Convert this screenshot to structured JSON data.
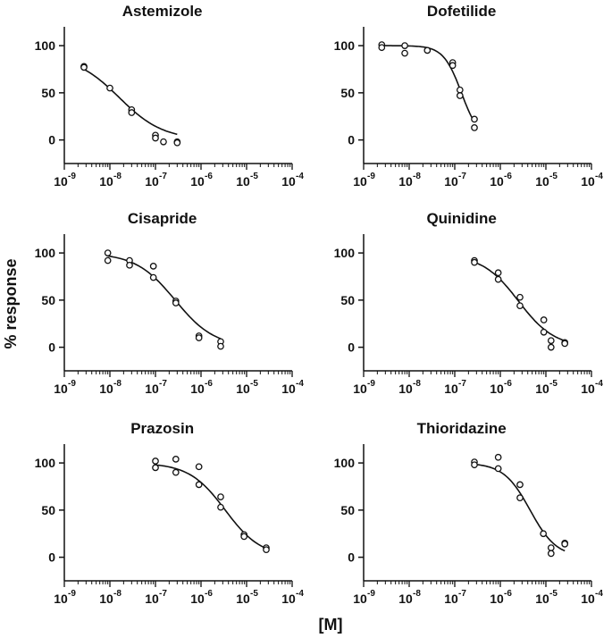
{
  "figure": {
    "ylabel": "% response",
    "xlabel": "[M]"
  },
  "chart_data": [
    {
      "type": "scatter",
      "title": "Astemizole",
      "xscale": "log",
      "xlim": [
        1e-09,
        0.0001
      ],
      "ylim": [
        -25,
        120
      ],
      "yticks": [
        0,
        50,
        100
      ],
      "xticks": [
        "10^-9",
        "10^-8",
        "10^-7",
        "10^-6",
        "10^-5",
        "10^-4"
      ],
      "points": [
        [
          2.7e-09,
          78
        ],
        [
          2.7e-09,
          77
        ],
        [
          1e-08,
          55
        ],
        [
          3e-08,
          32
        ],
        [
          3e-08,
          29
        ],
        [
          1e-07,
          5
        ],
        [
          1e-07,
          2
        ],
        [
          1.5e-07,
          -2
        ],
        [
          3e-07,
          -2
        ],
        [
          3e-07,
          -3
        ]
      ],
      "fit": {
        "top": 90,
        "bottom": 0,
        "ic50": 1.6e-08,
        "hill": 0.9,
        "x_range": [
          2.7e-09,
          3e-07
        ]
      }
    },
    {
      "type": "scatter",
      "title": "Dofetilide",
      "xscale": "log",
      "xlim": [
        1e-09,
        0.0001
      ],
      "ylim": [
        -25,
        120
      ],
      "yticks": [
        0,
        50,
        100
      ],
      "xticks": [
        "10^-9",
        "10^-8",
        "10^-7",
        "10^-6",
        "10^-5",
        "10^-4"
      ],
      "points": [
        [
          2.5e-09,
          101
        ],
        [
          2.5e-09,
          98
        ],
        [
          8e-09,
          100
        ],
        [
          8e-09,
          92
        ],
        [
          2.5e-08,
          95
        ],
        [
          9e-08,
          82
        ],
        [
          9e-08,
          79
        ],
        [
          1.3e-07,
          53
        ],
        [
          1.3e-07,
          47
        ],
        [
          2.7e-07,
          22
        ],
        [
          2.7e-07,
          13
        ]
      ],
      "fit": {
        "top": 100,
        "bottom": 0,
        "ic50": 1.4e-07,
        "hill": 2.2,
        "x_range": [
          2.5e-09,
          2.7e-07
        ]
      }
    },
    {
      "type": "scatter",
      "title": "Cisapride",
      "xscale": "log",
      "xlim": [
        1e-09,
        0.0001
      ],
      "ylim": [
        -25,
        120
      ],
      "yticks": [
        0,
        50,
        100
      ],
      "xticks": [
        "10^-9",
        "10^-8",
        "10^-7",
        "10^-6",
        "10^-5",
        "10^-4"
      ],
      "points": [
        [
          9e-09,
          100
        ],
        [
          9e-09,
          92
        ],
        [
          2.7e-08,
          92
        ],
        [
          2.7e-08,
          87
        ],
        [
          9e-08,
          86
        ],
        [
          9e-08,
          74
        ],
        [
          2.8e-07,
          49
        ],
        [
          2.8e-07,
          47
        ],
        [
          9e-07,
          12
        ],
        [
          9e-07,
          10
        ],
        [
          2.7e-06,
          6
        ],
        [
          2.7e-06,
          1
        ]
      ],
      "fit": {
        "top": 100,
        "bottom": 0,
        "ic50": 2.7e-07,
        "hill": 1.0,
        "x_range": [
          9e-09,
          2.7e-06
        ]
      }
    },
    {
      "type": "scatter",
      "title": "Quinidine",
      "xscale": "log",
      "xlim": [
        1e-09,
        0.0001
      ],
      "ylim": [
        -25,
        120
      ],
      "yticks": [
        0,
        50,
        100
      ],
      "xticks": [
        "10^-9",
        "10^-8",
        "10^-7",
        "10^-6",
        "10^-5",
        "10^-4"
      ],
      "points": [
        [
          2.7e-07,
          92
        ],
        [
          2.7e-07,
          90
        ],
        [
          9e-07,
          79
        ],
        [
          9e-07,
          72
        ],
        [
          2.7e-06,
          53
        ],
        [
          2.7e-06,
          44
        ],
        [
          9e-06,
          29
        ],
        [
          9e-06,
          16
        ],
        [
          1.3e-05,
          7
        ],
        [
          1.3e-05,
          0
        ],
        [
          2.6e-05,
          5
        ],
        [
          2.6e-05,
          4
        ]
      ],
      "fit": {
        "top": 98,
        "bottom": 0,
        "ic50": 2.5e-06,
        "hill": 1.1,
        "x_range": [
          2.7e-07,
          2.6e-05
        ]
      }
    },
    {
      "type": "scatter",
      "title": "Prazosin",
      "xscale": "log",
      "xlim": [
        1e-09,
        0.0001
      ],
      "ylim": [
        -25,
        120
      ],
      "yticks": [
        0,
        50,
        100
      ],
      "xticks": [
        "10^-9",
        "10^-8",
        "10^-7",
        "10^-6",
        "10^-5",
        "10^-4"
      ],
      "points": [
        [
          1e-07,
          102
        ],
        [
          1e-07,
          95
        ],
        [
          2.8e-07,
          104
        ],
        [
          2.8e-07,
          90
        ],
        [
          9e-07,
          96
        ],
        [
          9e-07,
          77
        ],
        [
          2.7e-06,
          64
        ],
        [
          2.7e-06,
          53
        ],
        [
          8.8e-06,
          24
        ],
        [
          8.8e-06,
          22
        ],
        [
          2.7e-05,
          10
        ],
        [
          2.7e-05,
          8
        ]
      ],
      "fit": {
        "top": 100,
        "bottom": 0,
        "ic50": 3.4e-06,
        "hill": 1.1,
        "x_range": [
          1e-07,
          2.7e-05
        ]
      }
    },
    {
      "type": "scatter",
      "title": "Thioridazine",
      "xscale": "log",
      "xlim": [
        1e-09,
        0.0001
      ],
      "ylim": [
        -25,
        120
      ],
      "yticks": [
        0,
        50,
        100
      ],
      "xticks": [
        "10^-9",
        "10^-8",
        "10^-7",
        "10^-6",
        "10^-5",
        "10^-4"
      ],
      "points": [
        [
          2.7e-07,
          101
        ],
        [
          2.7e-07,
          98
        ],
        [
          9e-07,
          106
        ],
        [
          9e-07,
          94
        ],
        [
          2.7e-06,
          77
        ],
        [
          2.7e-06,
          63
        ],
        [
          8.8e-06,
          25
        ],
        [
          1.3e-05,
          10
        ],
        [
          1.3e-05,
          4
        ],
        [
          2.6e-05,
          15
        ],
        [
          2.6e-05,
          14
        ]
      ],
      "fit": {
        "top": 100,
        "bottom": 0,
        "ic50": 4.5e-06,
        "hill": 1.5,
        "x_range": [
          2.7e-07,
          2.6e-05
        ]
      }
    }
  ]
}
